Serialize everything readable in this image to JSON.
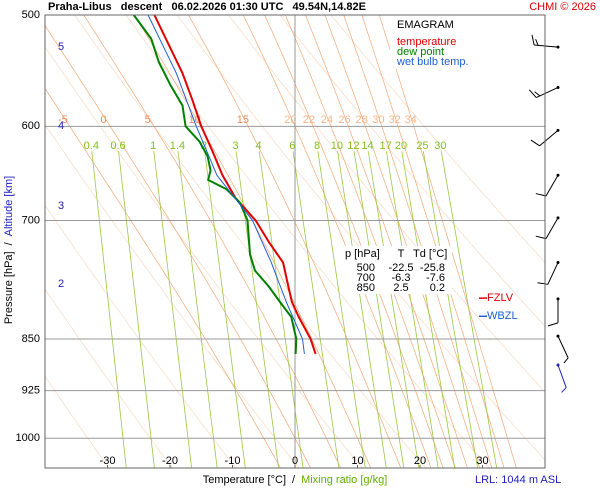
{
  "chart_data": {
    "type": "emagram",
    "title": "Praha-Libus   descent   06.02.2026 01:30 UTC   49.54N,14.82E",
    "credit": "CHMI © 2026",
    "legend_title": "EMAGRAM",
    "xlabel": "Temperature [°C]",
    "xlabel2": "Mixing ratio [g/kg]",
    "ylabel": "Pressure [hPa]",
    "ylabel2": "Altitude [km]",
    "label_separator": "/",
    "footnote": "LRL: 1044 m ASL",
    "xlim": [
      -40,
      40
    ],
    "xticks": [
      -30,
      -20,
      -10,
      0,
      10,
      20,
      30
    ],
    "ylim": [
      1050,
      500
    ],
    "ylog": true,
    "yticks": [
      500,
      600,
      700,
      850,
      925,
      1000
    ],
    "altitude_ticks": [
      {
        "value": 527,
        "label": "5"
      },
      {
        "value": 600,
        "label": "4"
      },
      {
        "value": 684,
        "label": "3"
      },
      {
        "value": 777,
        "label": "2"
      }
    ],
    "mixing_ratios": [
      0.4,
      0.6,
      1,
      1.4,
      2,
      3,
      4,
      6,
      8,
      10,
      12,
      14,
      17,
      20,
      25,
      30
    ],
    "moist_adiabats": [
      -5,
      0,
      5,
      10,
      15,
      20,
      22,
      24,
      26,
      28,
      30,
      32,
      34
    ],
    "series": [
      {
        "name": "temperature",
        "color": "#e00000",
        "y": [
          871,
          850,
          820,
          800,
          775,
          750,
          725,
          700,
          675,
          650,
          625,
          600,
          575,
          550,
          525,
          500
        ],
        "x": [
          3.3,
          2.5,
          0.6,
          -0.5,
          -1.2,
          -1.9,
          -4.2,
          -6.3,
          -9.5,
          -11.6,
          -13.2,
          -15,
          -16.4,
          -18,
          -20.2,
          -22.5
        ]
      },
      {
        "name": "dew point",
        "color": "#008000",
        "y": [
          871,
          850,
          820,
          800,
          780,
          760,
          740,
          720,
          700,
          680,
          665,
          655,
          645,
          630,
          615,
          600,
          580,
          560,
          540,
          520,
          500
        ],
        "x": [
          0.1,
          0.2,
          -0.6,
          -2.4,
          -4.2,
          -6.4,
          -7.2,
          -7.4,
          -7.6,
          -8.8,
          -11,
          -13.9,
          -13.5,
          -14,
          -15.3,
          -17.5,
          -18,
          -20,
          -21.8,
          -23,
          -25.8
        ]
      },
      {
        "name": "wet bulb temp.",
        "color": "#2060d0",
        "y": [
          871,
          850,
          800,
          750,
          700,
          650,
          600,
          550,
          500
        ],
        "x": [
          1.5,
          1.2,
          -1.4,
          -3.8,
          -6.8,
          -12.5,
          -15.8,
          -19,
          -23.5
        ]
      }
    ],
    "table": {
      "header": [
        "p [hPa]",
        "T",
        "Td [°C]"
      ],
      "rows": [
        [
          500,
          -22.5,
          -25.8
        ],
        [
          700,
          -6.3,
          -7.6
        ],
        [
          850,
          2.5,
          0.2
        ]
      ]
    },
    "levels": [
      {
        "label": "FZLV",
        "p": 795,
        "color": "#e00000"
      },
      {
        "label": "WBZL",
        "p": 819,
        "color": "#2060d0"
      }
    ],
    "winds": {
      "pressure": [
        527,
        563,
        604,
        650,
        697,
        750,
        796,
        846,
        887
      ],
      "direction": [
        275,
        245,
        230,
        210,
        210,
        205,
        180,
        155,
        160
      ],
      "speed": [
        15,
        15,
        10,
        10,
        10,
        10,
        10,
        5,
        5
      ]
    }
  }
}
